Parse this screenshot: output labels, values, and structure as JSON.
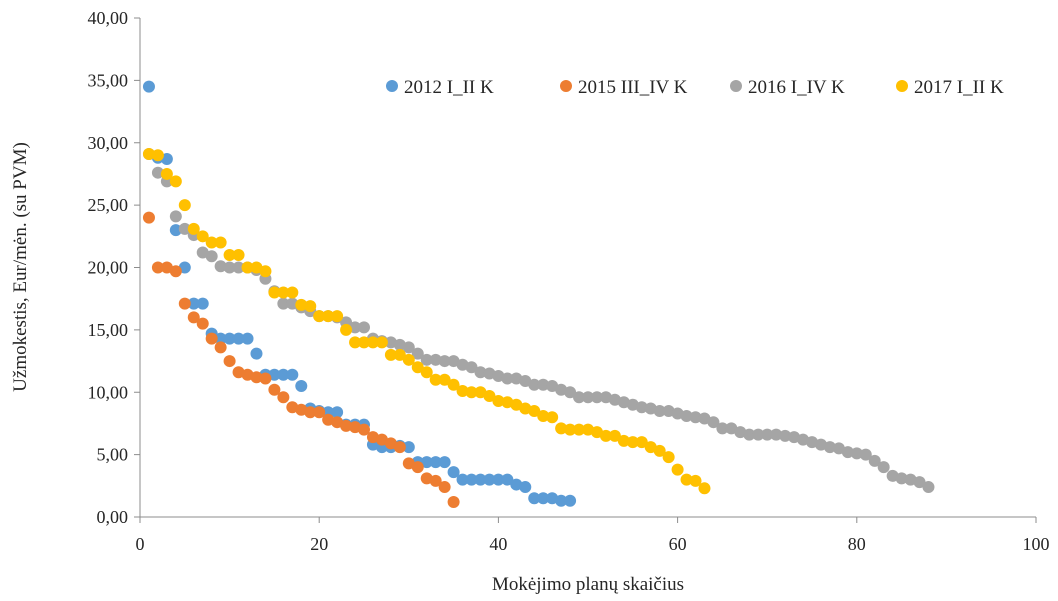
{
  "chart_data": {
    "type": "scatter",
    "title": "",
    "xlabel": "Mokėjimo planų skaičius",
    "ylabel": "Užmokestis, Eur/mėn. (su PVM)",
    "xlim": [
      0,
      100
    ],
    "ylim": [
      0,
      40
    ],
    "x_ticks": [
      0,
      20,
      40,
      60,
      80,
      100
    ],
    "x_tick_labels": [
      "0",
      "20",
      "40",
      "60",
      "80",
      "100"
    ],
    "y_ticks": [
      0,
      5,
      10,
      15,
      20,
      25,
      30,
      35,
      40
    ],
    "y_tick_labels": [
      "0,00",
      "5,00",
      "10,00",
      "15,00",
      "20,00",
      "25,00",
      "30,00",
      "35,00",
      "40,00"
    ],
    "grid": false,
    "legend_position": "top-right",
    "series": [
      {
        "name": "2012 I_II K",
        "color": "#5b9bd5",
        "values": [
          34.5,
          28.8,
          28.7,
          23.0,
          20.0,
          17.1,
          17.1,
          14.7,
          14.3,
          14.3,
          14.3,
          14.3,
          13.1,
          11.4,
          11.4,
          11.4,
          11.4,
          10.5,
          8.7,
          8.5,
          8.4,
          8.4,
          7.4,
          7.4,
          7.4,
          5.8,
          5.6,
          5.6,
          5.7,
          5.6,
          4.4,
          4.4,
          4.4,
          4.4,
          3.6,
          3.0,
          3.0,
          3.0,
          3.0,
          3.0,
          3.0,
          2.6,
          2.4,
          1.5,
          1.5,
          1.5,
          1.3,
          1.3
        ]
      },
      {
        "name": "2015 III_IV K",
        "color": "#ed7d31",
        "values": [
          24.0,
          20.0,
          20.0,
          19.7,
          17.1,
          16.0,
          15.5,
          14.3,
          13.6,
          12.5,
          11.6,
          11.4,
          11.2,
          11.1,
          10.2,
          9.6,
          8.8,
          8.6,
          8.4,
          8.4,
          7.8,
          7.6,
          7.3,
          7.2,
          7.0,
          6.4,
          6.2,
          5.9,
          5.6,
          4.3,
          4.0,
          3.1,
          2.9,
          2.4,
          1.2
        ]
      },
      {
        "name": "2016 I_IV K",
        "color": "#a5a5a5",
        "values": [
          29.1,
          27.6,
          26.9,
          24.1,
          23.1,
          22.6,
          21.2,
          20.9,
          20.1,
          20.0,
          20.0,
          20.0,
          19.8,
          19.1,
          18.1,
          17.1,
          17.1,
          16.8,
          16.5,
          16.1,
          16.1,
          16.0,
          15.6,
          15.2,
          15.2,
          14.3,
          14.1,
          14.0,
          13.8,
          13.6,
          13.1,
          12.6,
          12.6,
          12.5,
          12.5,
          12.2,
          12.0,
          11.6,
          11.5,
          11.3,
          11.1,
          11.1,
          10.9,
          10.6,
          10.6,
          10.5,
          10.2,
          10.0,
          9.6,
          9.6,
          9.6,
          9.6,
          9.4,
          9.2,
          9.0,
          8.8,
          8.7,
          8.5,
          8.5,
          8.3,
          8.1,
          8.0,
          7.9,
          7.6,
          7.1,
          7.1,
          6.8,
          6.6,
          6.6,
          6.6,
          6.6,
          6.5,
          6.4,
          6.2,
          6.0,
          5.8,
          5.6,
          5.5,
          5.2,
          5.1,
          5.0,
          4.5,
          4.0,
          3.3,
          3.1,
          3.0,
          2.8,
          2.4
        ]
      },
      {
        "name": "2017 I_II K",
        "color": "#ffc000",
        "values": [
          29.1,
          29.0,
          27.5,
          26.9,
          25.0,
          23.1,
          22.5,
          22.0,
          22.0,
          21.0,
          21.0,
          20.0,
          20.0,
          19.7,
          18.0,
          18.0,
          18.0,
          17.0,
          16.9,
          16.1,
          16.1,
          16.1,
          15.0,
          14.0,
          14.0,
          14.0,
          14.0,
          13.0,
          13.0,
          12.6,
          12.0,
          11.6,
          11.0,
          11.0,
          10.6,
          10.1,
          10.0,
          10.0,
          9.7,
          9.3,
          9.2,
          9.0,
          8.7,
          8.5,
          8.1,
          8.0,
          7.1,
          7.0,
          7.0,
          7.0,
          6.8,
          6.5,
          6.5,
          6.1,
          6.0,
          6.0,
          5.6,
          5.3,
          4.8,
          3.8,
          3.0,
          2.9,
          2.3
        ]
      }
    ]
  }
}
